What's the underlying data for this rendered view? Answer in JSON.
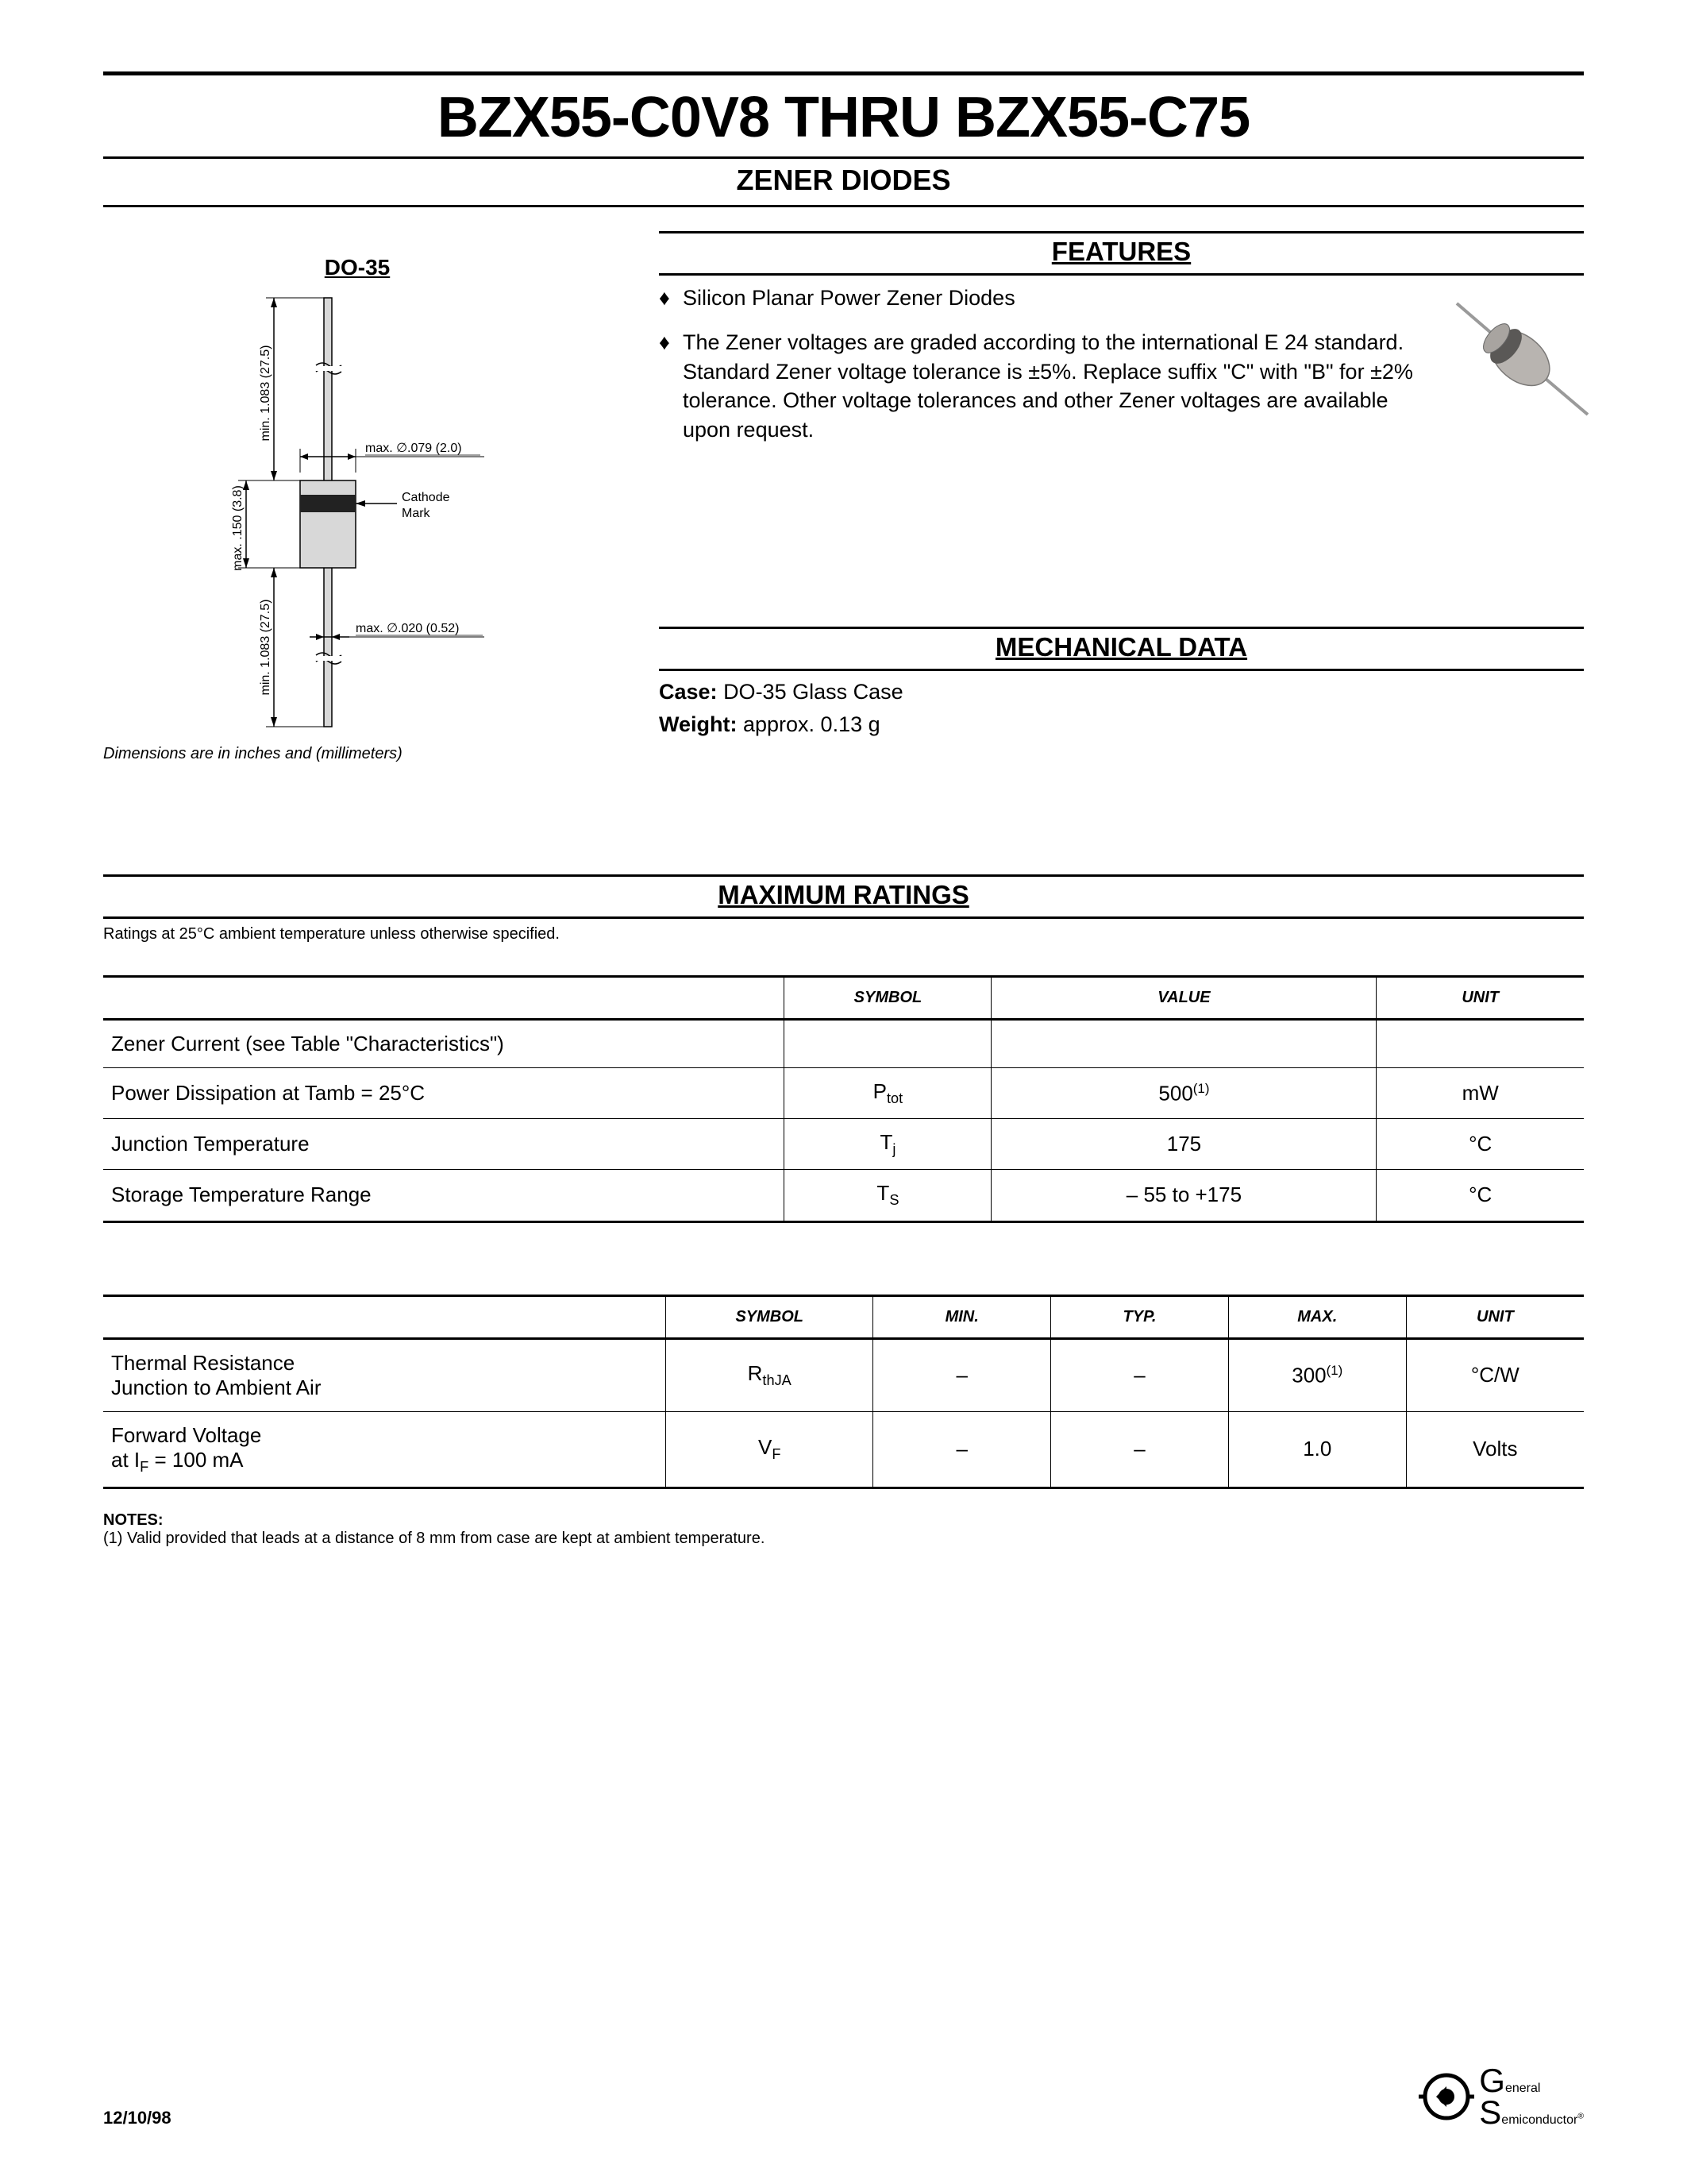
{
  "header": {
    "title": "BZX55-C0V8 THRU BZX55-C75",
    "subtitle": "ZENER DIODES"
  },
  "diagram": {
    "title": "DO-35",
    "caption": "Dimensions are in inches and (millimeters)",
    "labels": {
      "left_outer": "max. .150 (3.8)",
      "left_upper": "min. 1.083 (27.5)",
      "left_lower": "min. 1.083 (27.5)",
      "top_dim": "max. ∅.079 (2.0)",
      "bot_dim": "max. ∅.020 (0.52)",
      "cathode": "Cathode\nMark"
    },
    "colors": {
      "line": "#000000",
      "fill_light": "#d8d8d8",
      "fill_dark": "#6a6a6a",
      "bg": "#ffffff"
    }
  },
  "features": {
    "heading": "FEATURES",
    "items": [
      "Silicon Planar Power Zener Diodes",
      "The Zener voltages are graded according to the international E 24 standard. Standard Zener voltage tolerance is ±5%. Replace suffix \"C\" with \"B\" for ±2% tolerance. Other voltage tolerances and other Zener voltages are available upon request."
    ]
  },
  "mechanical": {
    "heading": "MECHANICAL DATA",
    "case_label": "Case:",
    "case_value": "DO-35 Glass Case",
    "weight_label": "Weight:",
    "weight_value": "approx. 0.13 g"
  },
  "ratings": {
    "heading": "MAXIMUM RATINGS",
    "note": "Ratings at 25°C ambient temperature unless otherwise specified.",
    "table1": {
      "headers": {
        "symbol": "SYMBOL",
        "value": "VALUE",
        "unit": "UNIT"
      },
      "rows": [
        {
          "param": "Zener Current (see Table \"Characteristics\")",
          "symbol": "",
          "value": "",
          "unit": ""
        },
        {
          "param": "Power Dissipation at Tamb = 25°C",
          "symbol_html": "P<span class=\"sub\">tot</span>",
          "value_html": "500<span class=\"sup\">(1)</span>",
          "unit": "mW"
        },
        {
          "param": "Junction Temperature",
          "symbol_html": "T<span class=\"sub\">j</span>",
          "value": "175",
          "unit": "°C"
        },
        {
          "param": "Storage Temperature Range",
          "symbol_html": "T<span class=\"sub\">S</span>",
          "value": "– 55 to +175",
          "unit": "°C"
        }
      ]
    },
    "table2": {
      "headers": {
        "symbol": "SYMBOL",
        "min": "MIN.",
        "typ": "TYP.",
        "max": "MAX.",
        "unit": "UNIT"
      },
      "rows": [
        {
          "param_html": "Thermal Resistance<br>Junction to Ambient Air",
          "symbol_html": "R<span class=\"sub\">thJA</span>",
          "min": "–",
          "typ": "–",
          "max_html": "300<span class=\"sup\">(1)</span>",
          "unit": "°C/W"
        },
        {
          "param_html": "Forward Voltage<br>at I<span class=\"sub\">F</span> = 100 mA",
          "symbol_html": "V<span class=\"sub\">F</span>",
          "min": "–",
          "typ": "–",
          "max": "1.0",
          "unit": "Volts"
        }
      ]
    }
  },
  "notes": {
    "heading": "NOTES:",
    "body": "(1) Valid provided that leads at a distance of 8 mm from case are kept at ambient temperature."
  },
  "footer": {
    "date": "12/10/98",
    "logo_line1": "General",
    "logo_line2": "Semiconductor",
    "reg": "®"
  }
}
